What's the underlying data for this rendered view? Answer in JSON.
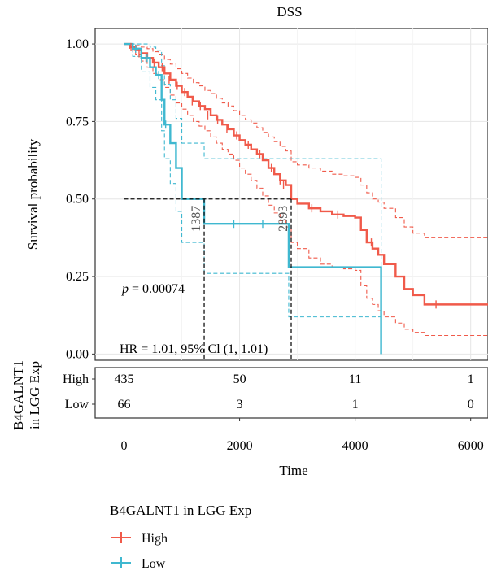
{
  "chart_data": {
    "type": "line",
    "subtype": "kaplan-meier",
    "title": "DSS",
    "xlabel": "Time",
    "ylabel": "Survival probability",
    "xlim": [
      -500,
      6300
    ],
    "ylim": [
      -0.02,
      1.05
    ],
    "xticks": [
      0,
      2000,
      4000,
      6000
    ],
    "yticks": [
      0.0,
      0.25,
      0.5,
      0.75,
      1.0
    ],
    "ytick_labels": [
      "0.00",
      "0.25",
      "0.50",
      "0.75",
      "1.00"
    ],
    "grid": true,
    "colors": {
      "High": "#f05a4a",
      "Low": "#3fb8d0"
    },
    "series": [
      {
        "name": "High",
        "x": [
          0,
          100,
          200,
          300,
          400,
          500,
          600,
          700,
          800,
          900,
          1000,
          1100,
          1200,
          1300,
          1400,
          1500,
          1600,
          1700,
          1800,
          1900,
          2000,
          2100,
          2200,
          2300,
          2400,
          2500,
          2600,
          2700,
          2800,
          2893,
          3000,
          3200,
          3400,
          3600,
          3800,
          4000,
          4100,
          4200,
          4300,
          4400,
          4500,
          4700,
          4850,
          5000,
          5200,
          5400,
          6300
        ],
        "y": [
          1.0,
          0.99,
          0.98,
          0.97,
          0.955,
          0.94,
          0.925,
          0.905,
          0.885,
          0.865,
          0.845,
          0.83,
          0.815,
          0.8,
          0.79,
          0.77,
          0.755,
          0.74,
          0.725,
          0.705,
          0.69,
          0.675,
          0.66,
          0.645,
          0.625,
          0.6,
          0.58,
          0.56,
          0.545,
          0.5,
          0.485,
          0.47,
          0.46,
          0.45,
          0.445,
          0.44,
          0.4,
          0.36,
          0.34,
          0.32,
          0.29,
          0.25,
          0.21,
          0.19,
          0.16,
          0.16,
          0.16
        ],
        "lower": [
          1.0,
          0.98,
          0.965,
          0.945,
          0.925,
          0.905,
          0.885,
          0.86,
          0.835,
          0.81,
          0.79,
          0.77,
          0.75,
          0.735,
          0.72,
          0.7,
          0.68,
          0.66,
          0.645,
          0.625,
          0.6,
          0.58,
          0.56,
          0.535,
          0.51,
          0.48,
          0.455,
          0.43,
          0.41,
          0.36,
          0.34,
          0.31,
          0.29,
          0.28,
          0.275,
          0.27,
          0.22,
          0.18,
          0.16,
          0.14,
          0.12,
          0.1,
          0.08,
          0.07,
          0.06,
          0.06,
          0.06
        ],
        "upper": [
          1.0,
          1.0,
          0.995,
          0.99,
          0.985,
          0.975,
          0.965,
          0.95,
          0.935,
          0.92,
          0.905,
          0.89,
          0.875,
          0.865,
          0.85,
          0.84,
          0.825,
          0.81,
          0.8,
          0.785,
          0.77,
          0.755,
          0.745,
          0.73,
          0.715,
          0.7,
          0.685,
          0.67,
          0.655,
          0.62,
          0.61,
          0.6,
          0.59,
          0.58,
          0.575,
          0.57,
          0.545,
          0.52,
          0.5,
          0.49,
          0.47,
          0.44,
          0.41,
          0.39,
          0.375,
          0.375,
          0.375
        ]
      },
      {
        "name": "Low",
        "x": [
          0,
          150,
          300,
          450,
          550,
          650,
          700,
          800,
          900,
          1000,
          1387,
          2000,
          2500,
          2800,
          2850,
          3500,
          4000,
          4450,
          4450
        ],
        "y": [
          1.0,
          0.985,
          0.955,
          0.925,
          0.9,
          0.82,
          0.74,
          0.68,
          0.6,
          0.5,
          0.42,
          0.42,
          0.42,
          0.42,
          0.28,
          0.28,
          0.28,
          0.28,
          0.0
        ],
        "lower": [
          1.0,
          0.96,
          0.91,
          0.86,
          0.82,
          0.72,
          0.63,
          0.55,
          0.46,
          0.36,
          0.26,
          0.26,
          0.26,
          0.26,
          0.12,
          0.12,
          0.12,
          0.12,
          0.0
        ],
        "upper": [
          1.0,
          1.0,
          1.0,
          0.99,
          0.98,
          0.93,
          0.87,
          0.82,
          0.76,
          0.68,
          0.63,
          0.63,
          0.63,
          0.63,
          0.63,
          0.63,
          0.63,
          0.63,
          0.0
        ]
      }
    ],
    "annotations": {
      "p_value_prefix": "p",
      "p_value_text": " = 0.00074",
      "hr_text": "HR = 1.01, 95% Cl (1, 1.01)",
      "median_low": "1387",
      "median_high": "2893"
    },
    "risk_table": {
      "ylabel_line1": "B4GALNT1",
      "ylabel_line2": "in LGG Exp",
      "times": [
        0,
        2000,
        4000,
        6000
      ],
      "rows": [
        {
          "name": "High",
          "counts": [
            "435",
            "50",
            "11",
            "1"
          ]
        },
        {
          "name": "Low",
          "counts": [
            "66",
            "3",
            "1",
            "0"
          ]
        }
      ],
      "xlabel": "Time"
    },
    "legend": {
      "title": "B4GALNT1 in LGG Exp",
      "position": "bottom-left",
      "items": [
        "High",
        "Low"
      ]
    }
  }
}
